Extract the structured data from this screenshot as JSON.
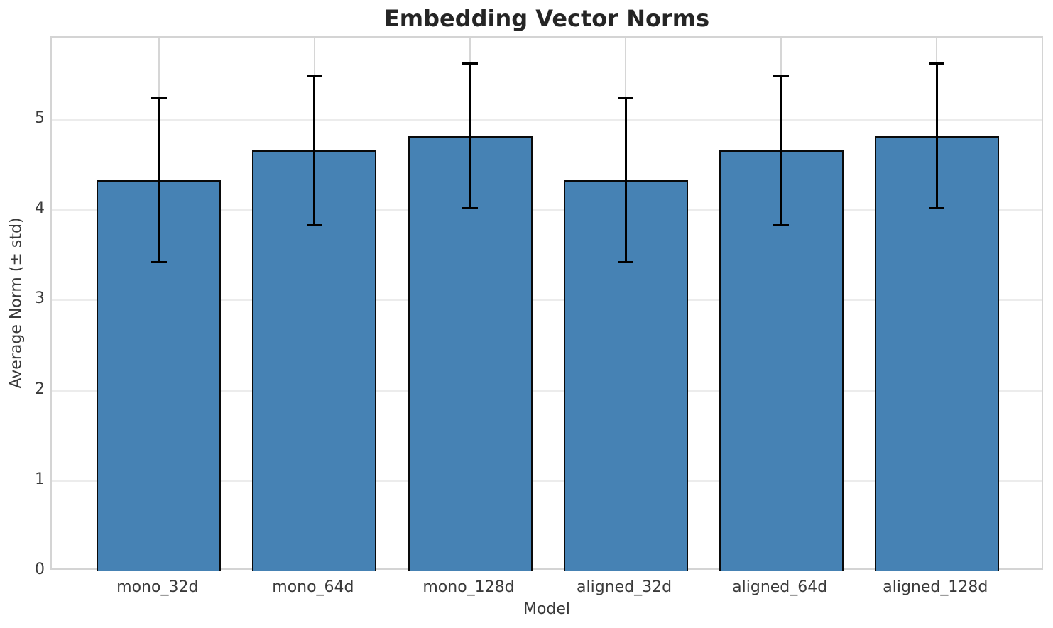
{
  "chart_data": {
    "type": "bar",
    "title": "Embedding Vector Norms",
    "xlabel": "Model",
    "ylabel": "Average Norm (± std)",
    "categories": [
      "mono_32d",
      "mono_64d",
      "mono_128d",
      "aligned_32d",
      "aligned_64d",
      "aligned_128d"
    ],
    "values": [
      4.33,
      4.66,
      4.82,
      4.33,
      4.66,
      4.82
    ],
    "errors": [
      0.91,
      0.82,
      0.8,
      0.91,
      0.82,
      0.8
    ],
    "ylim": [
      0,
      5.91
    ],
    "yticks": [
      0,
      1,
      2,
      3,
      4,
      5
    ],
    "grid": true,
    "legend_position": "none",
    "colors": {
      "bar_fill": "#4682b4",
      "bar_edge": "#0a0a0a",
      "error_bar": "#000000",
      "grid_horizontal": "#ececec",
      "grid_vertical": "#d6d6d6",
      "spine": "#d4d4d4",
      "title_text": "#252525",
      "label_text": "#3a3a3a"
    }
  }
}
